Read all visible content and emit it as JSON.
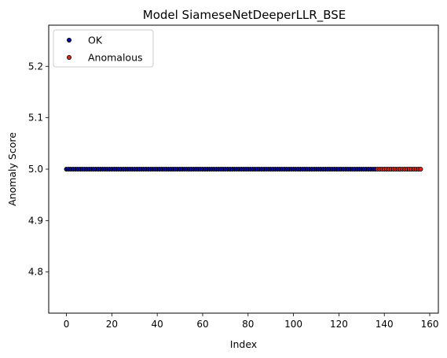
{
  "chart_data": {
    "type": "scatter",
    "title": "Model SiameseNetDeeperLLR_BSE",
    "xlabel": "Index",
    "ylabel": "Anomaly Score",
    "xlim": [
      -7.8,
      163.8
    ],
    "ylim": [
      4.72,
      5.28
    ],
    "xticks": [
      0,
      20,
      40,
      60,
      80,
      100,
      120,
      140,
      160
    ],
    "yticks": [
      4.8,
      4.9,
      5.0,
      5.1,
      5.2
    ],
    "ytick_labels": [
      "4.8",
      "4.9",
      "5.0",
      "5.1",
      "5.2"
    ],
    "grid": false,
    "legend": "top-left",
    "series": [
      {
        "name": "OK",
        "color": "#0b0b96",
        "edge": "#000000",
        "x_range": [
          0,
          136
        ],
        "y": 5.0
      },
      {
        "name": "Anomalous",
        "color": "#d42a1c",
        "edge": "#000000",
        "x_range": [
          137,
          156
        ],
        "y": 5.0
      }
    ]
  }
}
